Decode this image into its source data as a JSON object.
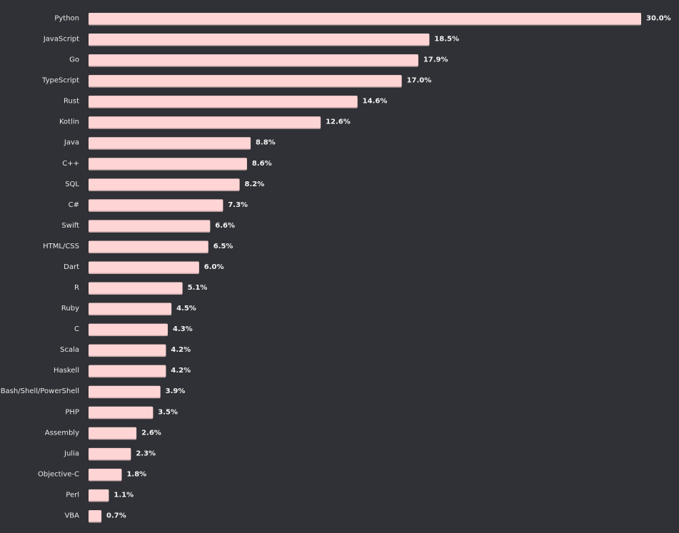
{
  "chart_data": {
    "type": "bar",
    "orientation": "horizontal",
    "categories": [
      "Python",
      "JavaScript",
      "Go",
      "TypeScript",
      "Rust",
      "Kotlin",
      "Java",
      "C++",
      "SQL",
      "C#",
      "Swift",
      "HTML/CSS",
      "Dart",
      "R",
      "Ruby",
      "C",
      "Scala",
      "Haskell",
      "Bash/Shell/PowerShell",
      "PHP",
      "Assembly",
      "Julia",
      "Objective-C",
      "Perl",
      "VBA"
    ],
    "values": [
      30.0,
      18.5,
      17.9,
      17.0,
      14.6,
      12.6,
      8.8,
      8.6,
      8.2,
      7.3,
      6.6,
      6.5,
      6.0,
      5.1,
      4.5,
      4.3,
      4.2,
      4.2,
      3.9,
      3.5,
      2.6,
      2.3,
      1.8,
      1.1,
      0.7
    ],
    "value_labels": [
      "30.0%",
      "18.5%",
      "17.9%",
      "17.0%",
      "14.6%",
      "12.6%",
      "8.8%",
      "8.6%",
      "8.2%",
      "7.3%",
      "6.6%",
      "6.5%",
      "6.0%",
      "5.1%",
      "4.5%",
      "4.3%",
      "4.2%",
      "4.2%",
      "3.9%",
      "3.5%",
      "2.6%",
      "2.3%",
      "1.8%",
      "1.1%",
      "0.7%"
    ],
    "xlim": [
      0,
      30.0
    ],
    "grid": false,
    "legend": "none",
    "title": "",
    "xlabel": "",
    "ylabel": ""
  },
  "colors": {
    "background": "#2f3136",
    "bar": "#ffd4d4",
    "bar_shadow": "#c9a9aa",
    "label_text": "#e8e8e8"
  }
}
